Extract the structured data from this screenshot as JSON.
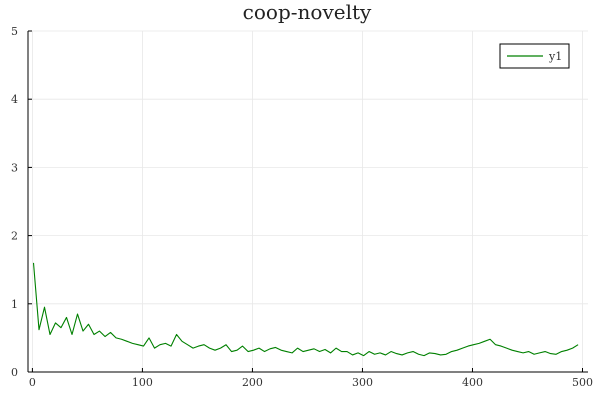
{
  "chart_data": {
    "type": "line",
    "title": "coop-novelty",
    "xlabel": "",
    "ylabel": "",
    "xlim": [
      -4,
      505
    ],
    "ylim": [
      0,
      5
    ],
    "x_ticks": [
      0,
      100,
      200,
      300,
      400,
      500
    ],
    "y_ticks": [
      0,
      1,
      2,
      3,
      4,
      5
    ],
    "grid": true,
    "legend_position": "top-right",
    "series": [
      {
        "name": "y1",
        "color": "#008000",
        "x_start": 1,
        "x_step": 5,
        "values": [
          1.6,
          0.62,
          0.95,
          0.55,
          0.72,
          0.65,
          0.8,
          0.55,
          0.85,
          0.6,
          0.7,
          0.55,
          0.6,
          0.52,
          0.58,
          0.5,
          0.48,
          0.45,
          0.42,
          0.4,
          0.38,
          0.5,
          0.35,
          0.4,
          0.42,
          0.38,
          0.55,
          0.45,
          0.4,
          0.35,
          0.38,
          0.4,
          0.35,
          0.32,
          0.35,
          0.4,
          0.3,
          0.32,
          0.38,
          0.3,
          0.32,
          0.35,
          0.3,
          0.34,
          0.36,
          0.32,
          0.3,
          0.28,
          0.35,
          0.3,
          0.32,
          0.34,
          0.3,
          0.33,
          0.28,
          0.35,
          0.3,
          0.3,
          0.25,
          0.28,
          0.24,
          0.3,
          0.26,
          0.28,
          0.25,
          0.3,
          0.27,
          0.25,
          0.28,
          0.3,
          0.26,
          0.24,
          0.28,
          0.27,
          0.25,
          0.26,
          0.3,
          0.32,
          0.35,
          0.38,
          0.4,
          0.42,
          0.45,
          0.48,
          0.4,
          0.38,
          0.35,
          0.32,
          0.3,
          0.28,
          0.3,
          0.26,
          0.28,
          0.3,
          0.27,
          0.26,
          0.3,
          0.32,
          0.35,
          0.4
        ]
      }
    ]
  }
}
